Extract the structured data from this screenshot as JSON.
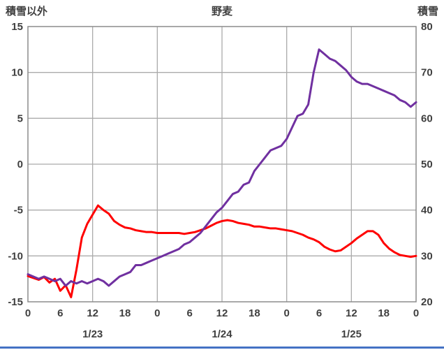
{
  "header": {
    "left_axis_title": "積雪以外",
    "chart_title": "野麦",
    "right_axis_title": "積雪"
  },
  "colors": {
    "line_red": "#FF0000",
    "line_purple": "#7030A0",
    "grid": "#ABABAB",
    "border": "#8C8C8C",
    "text": "#3F3F3F",
    "accent_bar": "#4472C4",
    "background": "#FFFFFF"
  },
  "chart_data": {
    "type": "line",
    "title": "野麦",
    "left_axis": {
      "label": "積雪以外",
      "min": -15,
      "max": 15,
      "ticks": [
        15,
        10,
        5,
        0,
        -5,
        -10,
        -15
      ]
    },
    "right_axis": {
      "label": "積雪",
      "min": 20,
      "max": 80,
      "ticks": [
        80,
        70,
        60,
        50,
        40,
        30,
        20
      ]
    },
    "x_axis": {
      "unit": "hour",
      "hours_span": 72,
      "tick_interval": 6,
      "tick_labels": [
        "0",
        "6",
        "12",
        "18",
        "0",
        "6",
        "12",
        "18",
        "0",
        "6",
        "12",
        "18",
        "0"
      ],
      "date_labels": [
        "1/23",
        "1/24",
        "1/25"
      ],
      "gridline_every_hours": 12,
      "grid": true
    },
    "legend": "none",
    "series": [
      {
        "name": "積雪以外",
        "axis": "left",
        "color": "#FF0000",
        "values": [
          -12.2,
          -12.4,
          -12.6,
          -12.3,
          -12.9,
          -12.5,
          -13.8,
          -13.2,
          -14.5,
          -11.5,
          -8.0,
          -6.5,
          -5.5,
          -4.5,
          -5.0,
          -5.4,
          -6.2,
          -6.6,
          -6.9,
          -7.0,
          -7.2,
          -7.3,
          -7.4,
          -7.4,
          -7.5,
          -7.5,
          -7.5,
          -7.5,
          -7.5,
          -7.6,
          -7.5,
          -7.4,
          -7.2,
          -7.0,
          -6.7,
          -6.4,
          -6.2,
          -6.1,
          -6.2,
          -6.4,
          -6.5,
          -6.6,
          -6.8,
          -6.8,
          -6.9,
          -7.0,
          -7.0,
          -7.1,
          -7.2,
          -7.3,
          -7.5,
          -7.7,
          -8.0,
          -8.2,
          -8.5,
          -9.0,
          -9.3,
          -9.5,
          -9.4,
          -9.0,
          -8.6,
          -8.1,
          -7.7,
          -7.3,
          -7.3,
          -7.7,
          -8.6,
          -9.2,
          -9.6,
          -9.9,
          -10.0,
          -10.1,
          -10.0
        ]
      },
      {
        "name": "積雪",
        "axis": "right",
        "color": "#7030A0",
        "values": [
          26,
          25.5,
          25,
          25.5,
          25,
          24.5,
          25,
          23.5,
          24.5,
          24,
          24.5,
          24,
          24.5,
          25,
          24.5,
          23.5,
          24.5,
          25.5,
          26,
          26.5,
          28,
          28,
          28.5,
          29,
          29.5,
          30,
          30.5,
          31,
          31.5,
          32.5,
          33,
          34,
          35,
          36.5,
          38,
          39.5,
          40.5,
          42,
          43.5,
          44,
          45.5,
          46,
          48.5,
          50,
          51.5,
          53,
          53.5,
          54,
          55.5,
          58,
          60.5,
          61,
          63,
          70,
          75,
          74,
          73,
          72.5,
          71.5,
          70.5,
          69,
          68,
          67.5,
          67.5,
          67,
          66.5,
          66,
          65.5,
          65,
          64,
          63.5,
          62.5,
          63.5
        ]
      }
    ]
  }
}
